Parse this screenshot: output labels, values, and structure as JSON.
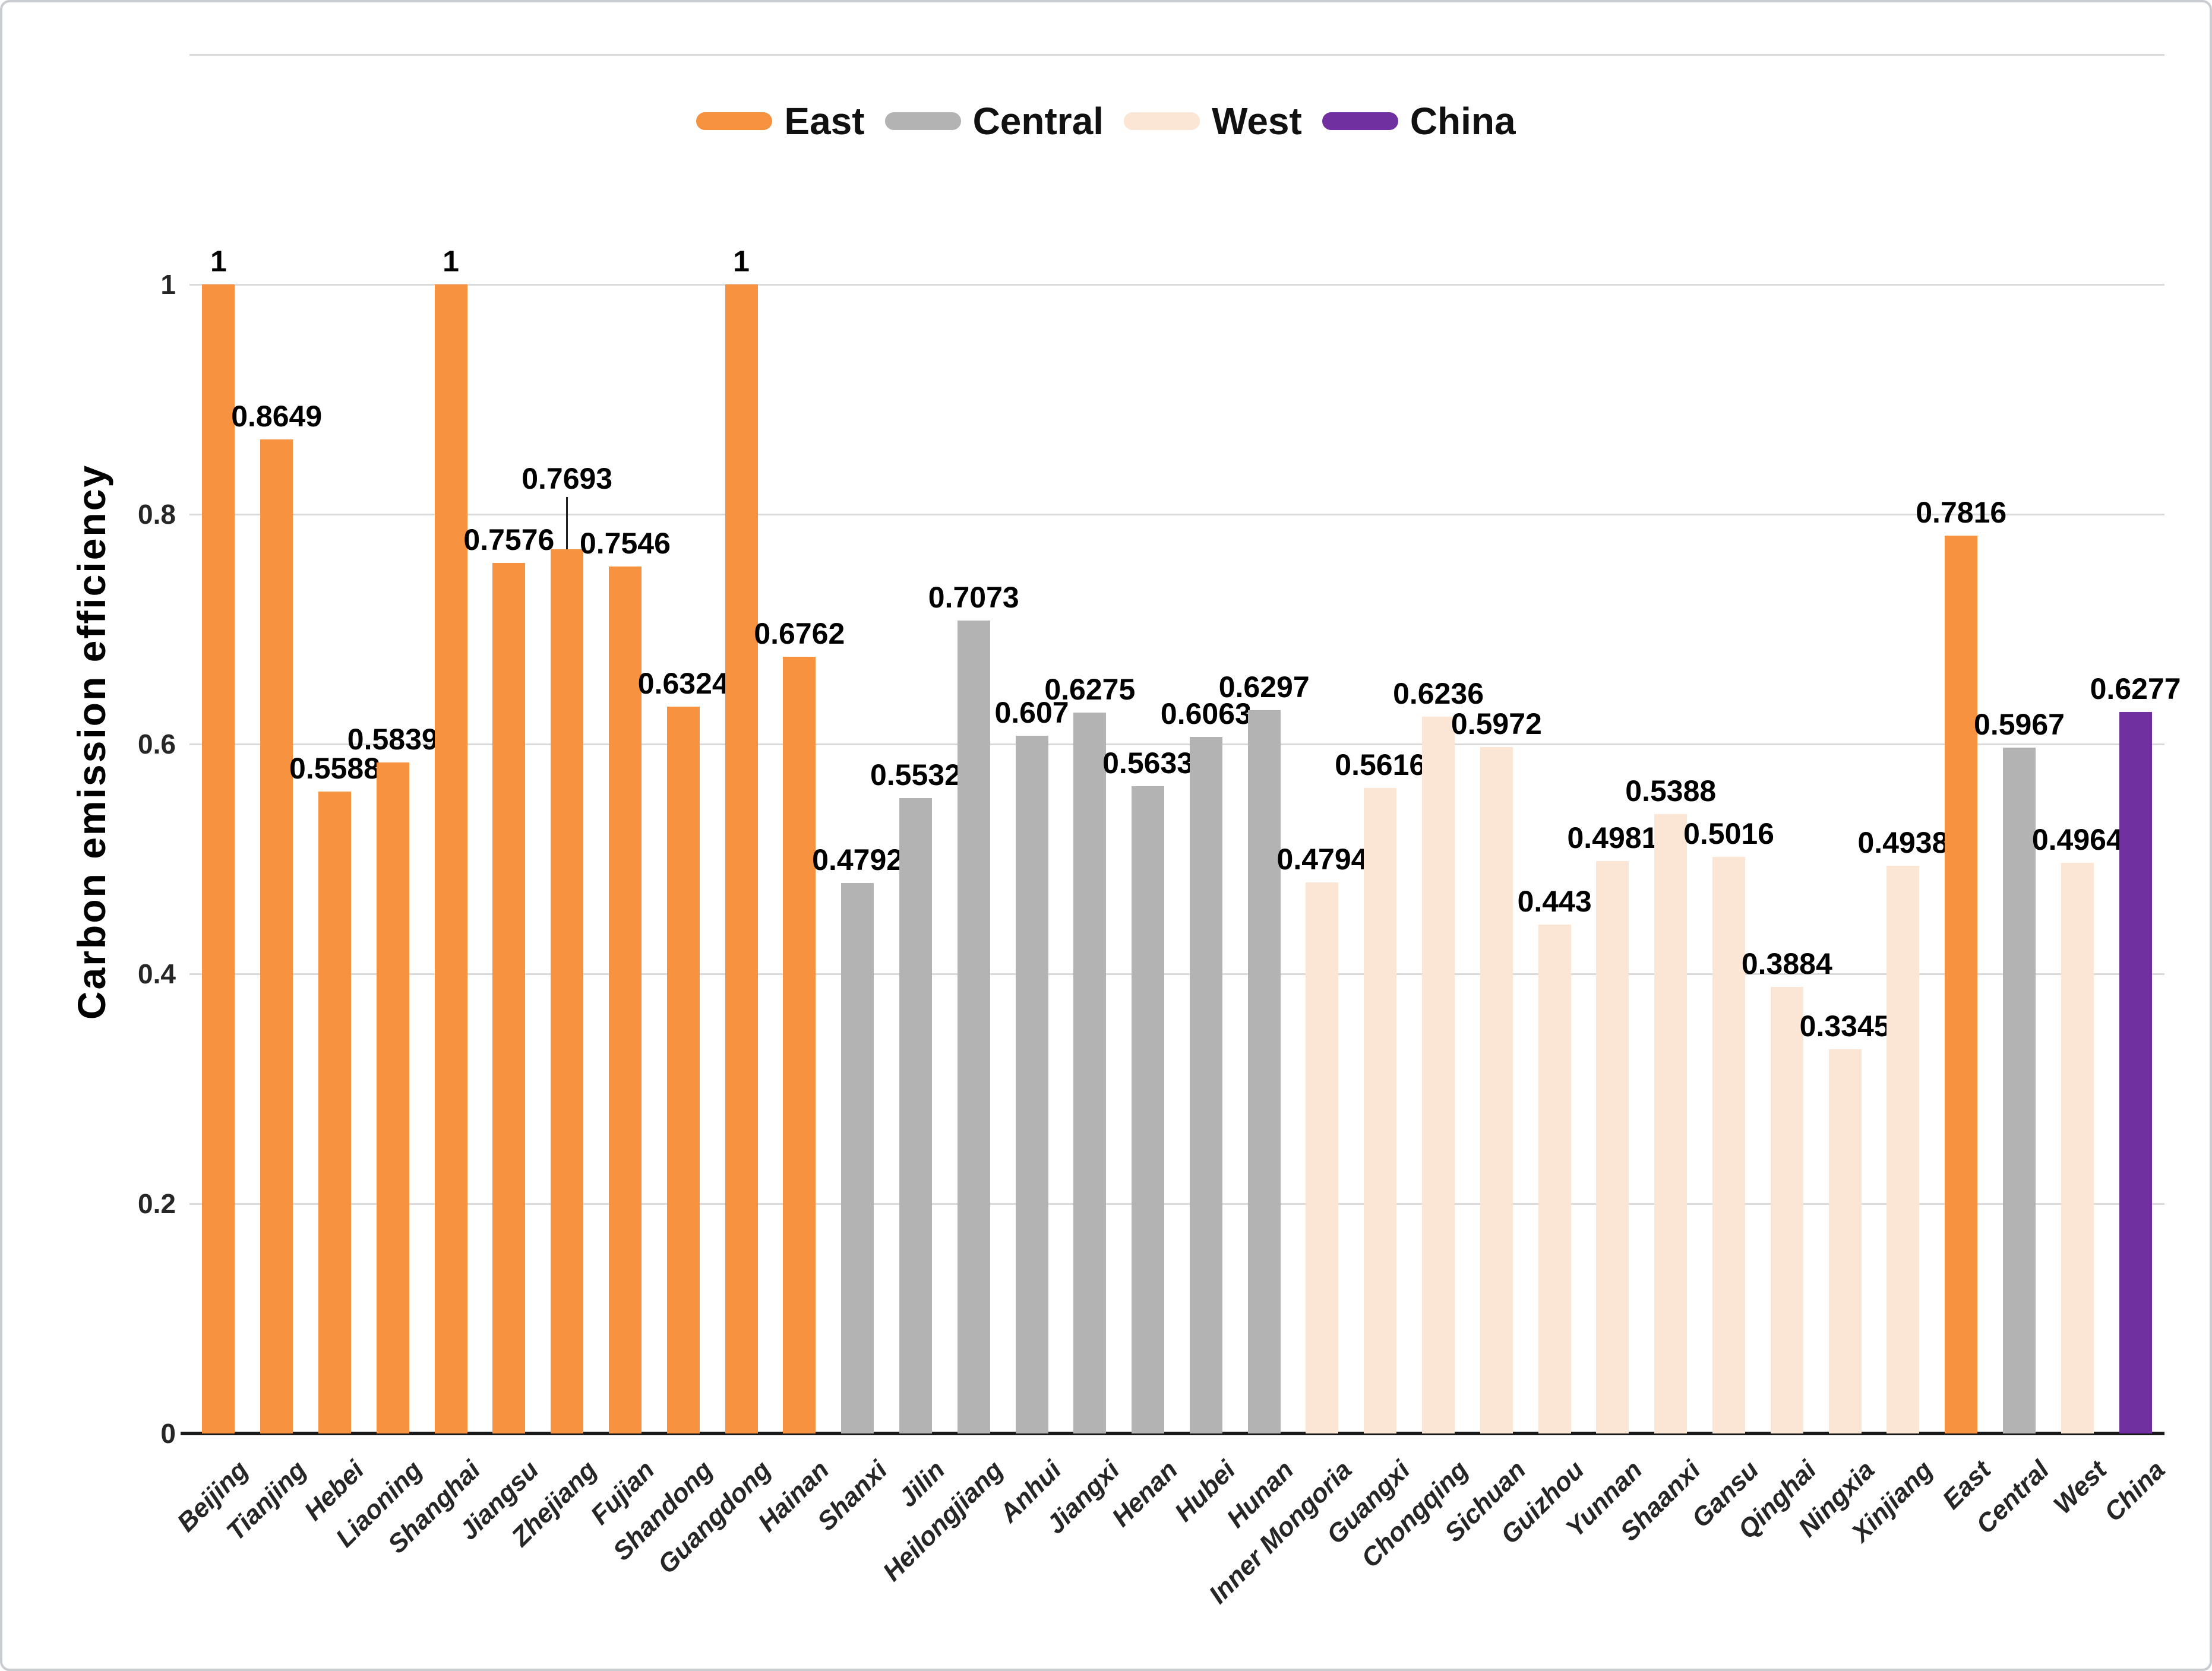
{
  "chart_data": {
    "type": "bar",
    "title": "",
    "ylabel": "Carbon emission efficiency",
    "y_axis": {
      "min": 0,
      "max": 1.2,
      "grid": true,
      "ticks": [
        {
          "v": 1,
          "label": "1"
        },
        {
          "v": 0.8,
          "label": "0.8"
        },
        {
          "v": 0.6,
          "label": "0.6"
        },
        {
          "v": 0.4,
          "label": "0.4"
        },
        {
          "v": 0.2,
          "label": "0.2"
        },
        {
          "v": 0,
          "label": "0"
        }
      ]
    },
    "x_axis": {
      "label_rotation": -45
    },
    "legend": {
      "position": "top",
      "entries": [
        {
          "name": "East",
          "color": "#F79240"
        },
        {
          "name": "Central",
          "color": "#B3B3B3"
        },
        {
          "name": "West",
          "color": "#FBE5D4"
        },
        {
          "name": "China",
          "color": "#7030A0"
        }
      ]
    },
    "series_colors": {
      "East": "#F79240",
      "Central": "#B3B3B3",
      "West": "#FBE5D4",
      "China": "#7030A0"
    },
    "style_colors": {
      "grid": "#DADADA",
      "axis_line": "#1A1A1A",
      "value_label": "#000000",
      "leader_line": "#222222"
    },
    "points": [
      {
        "category": "Beijing",
        "group": "East",
        "value": 1,
        "label": "1"
      },
      {
        "category": "Tianjing",
        "group": "East",
        "value": 0.8649,
        "label": "0.8649"
      },
      {
        "category": "Hebei",
        "group": "East",
        "value": 0.5588,
        "label": "0.5588"
      },
      {
        "category": "Liaoning",
        "group": "East",
        "value": 0.5839,
        "label": "0.5839"
      },
      {
        "category": "Shanghai",
        "group": "East",
        "value": 1,
        "label": "1"
      },
      {
        "category": "Jiangsu",
        "group": "East",
        "value": 0.7576,
        "label": "0.7576"
      },
      {
        "category": "Zhejiang",
        "group": "East",
        "value": 0.7693,
        "label": "0.7693",
        "label_dy": -80,
        "leader": true
      },
      {
        "category": "Fujian",
        "group": "East",
        "value": 0.7546,
        "label": "0.7546"
      },
      {
        "category": "Shandong",
        "group": "East",
        "value": 0.6324,
        "label": "0.6324"
      },
      {
        "category": "Guangdong",
        "group": "East",
        "value": 1,
        "label": "1"
      },
      {
        "category": "Hainan",
        "group": "East",
        "value": 0.6762,
        "label": "0.6762"
      },
      {
        "category": "Shanxi",
        "group": "Central",
        "value": 0.4792,
        "label": "0.4792"
      },
      {
        "category": "Jilin",
        "group": "Central",
        "value": 0.5532,
        "label": "0.5532"
      },
      {
        "category": "Heilongjiang",
        "group": "Central",
        "value": 0.7073,
        "label": "0.7073"
      },
      {
        "category": "Anhui",
        "group": "Central",
        "value": 0.607,
        "label": "0.607"
      },
      {
        "category": "Jiangxi",
        "group": "Central",
        "value": 0.6275,
        "label": "0.6275"
      },
      {
        "category": "Henan",
        "group": "Central",
        "value": 0.5633,
        "label": "0.5633"
      },
      {
        "category": "Hubei",
        "group": "Central",
        "value": 0.6063,
        "label": "0.6063"
      },
      {
        "category": "Hunan",
        "group": "Central",
        "value": 0.6297,
        "label": "0.6297"
      },
      {
        "category": "Inner Mongoria",
        "group": "West",
        "value": 0.4794,
        "label": "0.4794"
      },
      {
        "category": "Guangxi",
        "group": "West",
        "value": 0.5616,
        "label": "0.5616"
      },
      {
        "category": "Chongqing",
        "group": "West",
        "value": 0.6236,
        "label": "0.6236"
      },
      {
        "category": "Sichuan",
        "group": "West",
        "value": 0.5972,
        "label": "0.5972"
      },
      {
        "category": "Guizhou",
        "group": "West",
        "value": 0.443,
        "label": "0.443"
      },
      {
        "category": "Yunnan",
        "group": "West",
        "value": 0.4981,
        "label": "0.4981"
      },
      {
        "category": "Shaanxi",
        "group": "West",
        "value": 0.5388,
        "label": "0.5388"
      },
      {
        "category": "Gansu",
        "group": "West",
        "value": 0.5016,
        "label": "0.5016"
      },
      {
        "category": "Qinghai",
        "group": "West",
        "value": 0.3884,
        "label": "0.3884"
      },
      {
        "category": "Ningxia",
        "group": "West",
        "value": 0.3345,
        "label": "0.3345"
      },
      {
        "category": "Xinjiang",
        "group": "West",
        "value": 0.4938,
        "label": "0.4938"
      },
      {
        "category": "East",
        "group": "East",
        "value": 0.7816,
        "label": "0.7816"
      },
      {
        "category": "Central",
        "group": "Central",
        "value": 0.5967,
        "label": "0.5967"
      },
      {
        "category": "West",
        "group": "West",
        "value": 0.4964,
        "label": "0.4964"
      },
      {
        "category": "China",
        "group": "China",
        "value": 0.6277,
        "label": "0.6277"
      }
    ]
  }
}
